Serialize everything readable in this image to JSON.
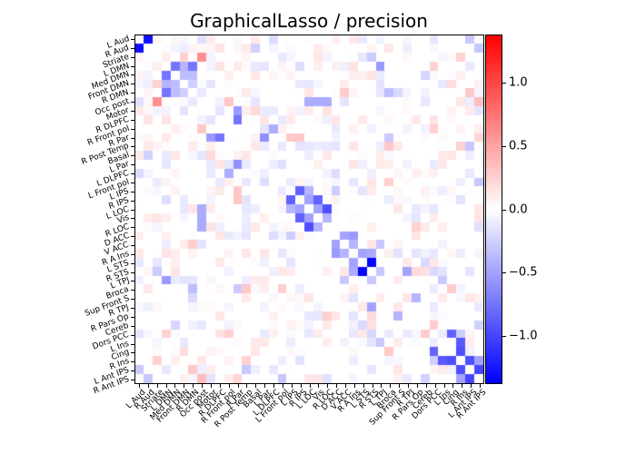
{
  "chart_data": {
    "type": "heatmap",
    "title": "GraphicalLasso / precision",
    "xlabel": "",
    "ylabel": "",
    "labels": [
      "L Aud",
      "R Aud",
      "Striate",
      "L DMN",
      "Med DMN",
      "Front DMN",
      "R DMN",
      "Occ post",
      "Motor",
      "R DLPFC",
      "R Front pol",
      "R Par",
      "R Post Temp",
      "Basal",
      "L Par",
      "L DLPFC",
      "L Front pol",
      "L IPS",
      "R IPS",
      "L LOC",
      "Vis",
      "R LOC",
      "D ACC",
      "V ACC",
      "R A Ins",
      "L STS",
      "R STS",
      "L TPJ",
      "Broca",
      "Sup Front S",
      "R TPJ",
      "R Pars Op",
      "Cereb",
      "Dors PCC",
      "L Ins",
      "Cing",
      "R Ins",
      "L Ant IPS",
      "R Ant IPS"
    ],
    "colorbar": {
      "cmap": "bwr",
      "vmin": -1.38,
      "vmax": 1.38,
      "ticks": [
        1.0,
        0.5,
        0.0,
        -0.5,
        -1.0
      ],
      "tick_labels": [
        "1.0",
        "0.5",
        "0.0",
        "−0.5",
        "−1.0"
      ]
    },
    "diagonal": "masked (white)",
    "notable_entries": [
      {
        "i": 0,
        "j": 1,
        "value": -1.3
      },
      {
        "i": 2,
        "j": 7,
        "value": 0.6
      },
      {
        "i": 3,
        "j": 4,
        "value": -0.75
      },
      {
        "i": 3,
        "j": 5,
        "value": -0.4
      },
      {
        "i": 3,
        "j": 6,
        "value": -0.75
      },
      {
        "i": 4,
        "j": 5,
        "value": -0.35
      },
      {
        "i": 4,
        "j": 6,
        "value": -0.35
      },
      {
        "i": 2,
        "j": 5,
        "value": 0.25
      },
      {
        "i": 9,
        "j": 11,
        "value": -0.75
      },
      {
        "i": 11,
        "j": 14,
        "value": -0.6
      },
      {
        "i": 11,
        "j": 17,
        "value": 0.3
      },
      {
        "i": 11,
        "j": 18,
        "value": 0.3
      },
      {
        "i": 8,
        "j": 11,
        "value": -0.55
      },
      {
        "i": 10,
        "j": 15,
        "value": -0.45
      },
      {
        "i": 17,
        "j": 18,
        "value": -0.85
      },
      {
        "i": 17,
        "j": 19,
        "value": -0.4
      },
      {
        "i": 18,
        "j": 19,
        "value": -0.5
      },
      {
        "i": 18,
        "j": 20,
        "value": -0.85
      },
      {
        "i": 19,
        "j": 20,
        "value": -0.5
      },
      {
        "i": 19,
        "j": 21,
        "value": -0.95
      },
      {
        "i": 20,
        "j": 21,
        "value": -0.4
      },
      {
        "i": 22,
        "j": 23,
        "value": -0.5
      },
      {
        "i": 22,
        "j": 24,
        "value": -0.55
      },
      {
        "i": 23,
        "j": 24,
        "value": -0.4
      },
      {
        "i": 24,
        "j": 25,
        "value": -0.5
      },
      {
        "i": 25,
        "j": 26,
        "value": -1.35
      },
      {
        "i": 26,
        "j": 27,
        "value": -0.3
      },
      {
        "i": 24,
        "j": 26,
        "value": -0.45
      },
      {
        "i": 27,
        "j": 3,
        "value": -0.55
      },
      {
        "i": 6,
        "j": 28,
        "value": -0.35
      },
      {
        "i": 12,
        "j": 28,
        "value": 0.3
      },
      {
        "i": 7,
        "j": 10,
        "value": 0.3
      },
      {
        "i": 7,
        "j": 19,
        "value": -0.45
      },
      {
        "i": 7,
        "j": 20,
        "value": -0.45
      },
      {
        "i": 7,
        "j": 21,
        "value": -0.45
      },
      {
        "i": 8,
        "j": 11,
        "value": -0.55
      },
      {
        "i": 26,
        "j": 30,
        "value": -0.5
      },
      {
        "i": 29,
        "j": 31,
        "value": -0.4
      },
      {
        "i": 33,
        "j": 35,
        "value": -0.85
      },
      {
        "i": 34,
        "j": 36,
        "value": -0.9
      },
      {
        "i": 35,
        "j": 36,
        "value": -0.95
      },
      {
        "i": 36,
        "j": 37,
        "value": -0.95
      },
      {
        "i": 37,
        "j": 38,
        "value": -1.0
      },
      {
        "i": 36,
        "j": 38,
        "value": -0.5
      },
      {
        "i": 2,
        "j": 36,
        "value": 0.25
      },
      {
        "i": 6,
        "j": 37,
        "value": 0.3
      },
      {
        "i": 7,
        "j": 38,
        "value": 0.35
      },
      {
        "i": 12,
        "j": 36,
        "value": 0.25
      },
      {
        "i": 16,
        "j": 38,
        "value": -0.3
      },
      {
        "i": 0,
        "j": 37,
        "value": -0.3
      },
      {
        "i": 1,
        "j": 38,
        "value": -0.3
      }
    ],
    "background_noise_amplitude": 0.15
  },
  "colorbar_ticks": [
    "1.0",
    "0.5",
    "0.0",
    "−0.5",
    "−1.0"
  ]
}
